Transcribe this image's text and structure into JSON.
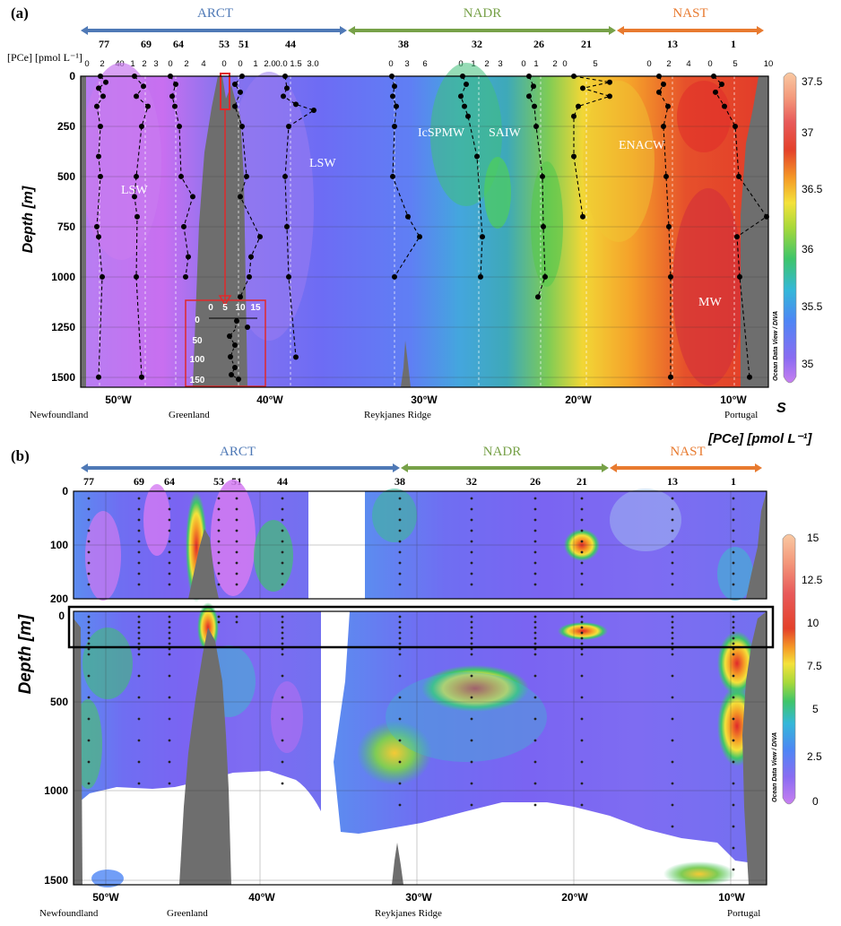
{
  "chart_data": [
    {
      "type": "heatmap",
      "panel_label": "(a)",
      "provinces": [
        {
          "name": "ARCT",
          "color": "#4f79b6"
        },
        {
          "name": "NADR",
          "color": "#77a148"
        },
        {
          "name": "NAST",
          "color": "#e87a2f"
        }
      ],
      "stations": [
        "77",
        "69",
        "64",
        "53",
        "51",
        "44",
        "38",
        "32",
        "26",
        "21",
        "13",
        "1"
      ],
      "profile_axis_label": "[PCe] [pmol L⁻¹]",
      "profile_ticks": [
        [
          "0",
          "2",
          "4"
        ],
        [
          "0",
          "1",
          "2",
          "3"
        ],
        [
          "0",
          "2",
          "4"
        ],
        [
          "0"
        ],
        [
          "0",
          "1",
          "2.0"
        ],
        [
          "0.0",
          "1.5",
          "3.0"
        ],
        [
          "0",
          "3",
          "6"
        ],
        [
          "0",
          "1",
          "2",
          "3"
        ],
        [
          "0",
          "1",
          "2"
        ],
        [
          "0",
          "5"
        ],
        [
          "0",
          "2",
          "4"
        ],
        [
          "0",
          "5",
          "10"
        ]
      ],
      "ylabel": "Depth [m]",
      "y_ticks": [
        "0",
        "250",
        "500",
        "750",
        "1000",
        "1250",
        "1500"
      ],
      "ylim": [
        0,
        1550
      ],
      "x_ticks": [
        "50°W",
        "40°W",
        "30°W",
        "20°W",
        "10°W"
      ],
      "xlim": [
        -52,
        -8
      ],
      "places": [
        "Newfoundland",
        "Greenland",
        "Reykjanes Ridge",
        "Portugal"
      ],
      "water_masses": [
        "LSW",
        "LSW",
        "IcSPMW",
        "SAIW",
        "ENACW",
        "MW"
      ],
      "inset": {
        "x_ticks": [
          "0",
          "5",
          "10",
          "15"
        ],
        "y_ticks": [
          "0",
          "50",
          "100",
          "150"
        ]
      },
      "colorbar": {
        "ticks": [
          "37.5",
          "37",
          "36.5",
          "36",
          "35.5",
          "35"
        ],
        "label": "S",
        "range": [
          34.8,
          37.5
        ]
      },
      "credit": "Ocean Data View / DIVA"
    },
    {
      "type": "heatmap",
      "panel_label": "(b)",
      "provinces": [
        {
          "name": "ARCT",
          "color": "#4f79b6"
        },
        {
          "name": "NADR",
          "color": "#77a148"
        },
        {
          "name": "NAST",
          "color": "#e87a2f"
        }
      ],
      "stations": [
        "77",
        "69",
        "64",
        "53",
        "51",
        "44",
        "38",
        "32",
        "26",
        "21",
        "13",
        "1"
      ],
      "ylabel": "Depth [m]",
      "upper_y_ticks": [
        "0",
        "100",
        "200"
      ],
      "lower_y_ticks": [
        "0",
        "500",
        "1000",
        "1500"
      ],
      "x_ticks": [
        "50°W",
        "40°W",
        "30°W",
        "20°W",
        "10°W"
      ],
      "places": [
        "Newfoundland",
        "Greenland",
        "Reykjanes Ridge",
        "Portugal"
      ],
      "colorbar": {
        "ticks": [
          "15",
          "12.5",
          "10",
          "7.5",
          "5",
          "2.5",
          "0"
        ],
        "label": "[PCe] [pmol L⁻¹]",
        "range": [
          0,
          15
        ]
      },
      "credit": "Ocean Data View / DIVA"
    }
  ]
}
